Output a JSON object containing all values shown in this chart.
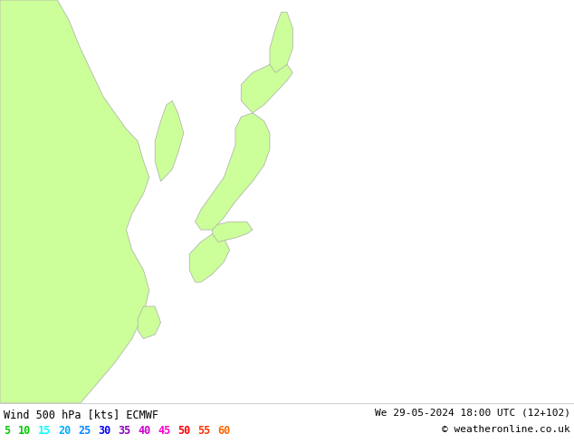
{
  "title_left": "Wind 500 hPa [kts] ECMWF",
  "title_right": "We 29-05-2024 18:00 UTC (12+102)",
  "copyright": "© weatheronline.co.uk",
  "legend_values": [
    5,
    10,
    15,
    20,
    25,
    30,
    35,
    40,
    45,
    50,
    55,
    60
  ],
  "background_land_color": "#ccff99",
  "background_sea_color": "#d8d8d8",
  "map_outline_color": "#aaaaaa",
  "figsize": [
    6.34,
    4.9
  ],
  "dpi": 100
}
